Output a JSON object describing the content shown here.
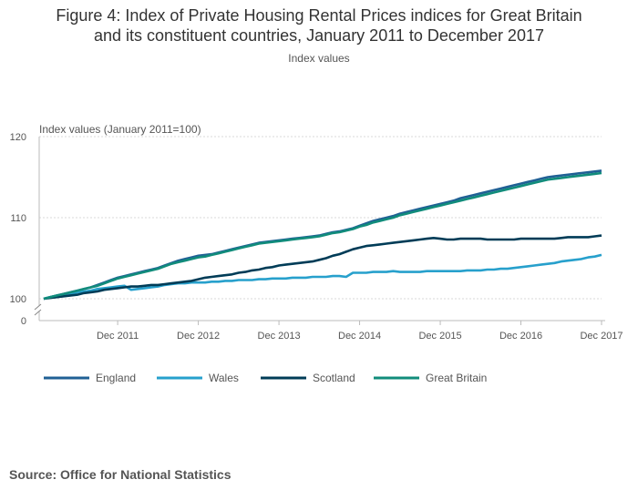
{
  "title_line1": "Figure 4: Index of Private Housing Rental Prices indices for Great Britain",
  "title_line2": "and its constituent countries, January 2011 to December 2017",
  "subtitle": "Index values",
  "source": "Source: Office for National Statistics",
  "chart_data": {
    "type": "line",
    "ylabel": "Index values (January 2011=100)",
    "xlabel": "",
    "ylim": [
      100,
      120
    ],
    "y_ticks": [
      "120",
      "110",
      "100",
      "0"
    ],
    "x_ticks": [
      "Dec 2011",
      "Dec 2012",
      "Dec 2013",
      "Dec 2014",
      "Dec 2015",
      "Dec 2016",
      "Dec 2017"
    ],
    "axis_break": true,
    "grid": true,
    "legend_position": "bottom",
    "x_start": "Jan 2011",
    "x_end": "Dec 2017",
    "series": [
      {
        "name": "England",
        "color": "#206095",
        "values": [
          100.0,
          100.2,
          100.4,
          100.6,
          100.8,
          101.0,
          101.2,
          101.4,
          101.7,
          102.0,
          102.3,
          102.6,
          102.8,
          103.0,
          103.2,
          103.4,
          103.6,
          103.8,
          104.1,
          104.4,
          104.7,
          104.9,
          105.1,
          105.3,
          105.4,
          105.5,
          105.7,
          105.9,
          106.1,
          106.3,
          106.5,
          106.7,
          106.9,
          107.0,
          107.1,
          107.2,
          107.3,
          107.4,
          107.5,
          107.6,
          107.7,
          107.8,
          108.0,
          108.2,
          108.3,
          108.5,
          108.7,
          109.0,
          109.3,
          109.6,
          109.8,
          110.0,
          110.2,
          110.5,
          110.7,
          110.9,
          111.1,
          111.3,
          111.5,
          111.7,
          111.9,
          112.1,
          112.4,
          112.6,
          112.8,
          113.0,
          113.2,
          113.4,
          113.6,
          113.8,
          114.0,
          114.2,
          114.4,
          114.6,
          114.8,
          115.0,
          115.1,
          115.2,
          115.3,
          115.4,
          115.5,
          115.6,
          115.7,
          115.8
        ]
      },
      {
        "name": "Wales",
        "color": "#27a0cc",
        "values": [
          100.0,
          100.2,
          100.4,
          100.5,
          100.6,
          100.8,
          100.9,
          101.0,
          101.2,
          101.3,
          101.4,
          101.5,
          101.6,
          101.1,
          101.2,
          101.3,
          101.4,
          101.5,
          101.7,
          101.8,
          101.9,
          101.9,
          102.0,
          102.0,
          102.0,
          102.1,
          102.1,
          102.2,
          102.2,
          102.3,
          102.3,
          102.3,
          102.4,
          102.4,
          102.5,
          102.5,
          102.5,
          102.6,
          102.6,
          102.6,
          102.7,
          102.7,
          102.7,
          102.8,
          102.8,
          102.7,
          103.2,
          103.2,
          103.2,
          103.3,
          103.3,
          103.3,
          103.4,
          103.3,
          103.3,
          103.3,
          103.3,
          103.4,
          103.4,
          103.4,
          103.4,
          103.4,
          103.4,
          103.5,
          103.5,
          103.5,
          103.6,
          103.6,
          103.7,
          103.7,
          103.8,
          103.9,
          104.0,
          104.1,
          104.2,
          104.3,
          104.4,
          104.6,
          104.7,
          104.8,
          104.9,
          105.1,
          105.2,
          105.4
        ]
      },
      {
        "name": "Scotland",
        "color": "#003c57",
        "values": [
          100.0,
          100.1,
          100.2,
          100.3,
          100.4,
          100.5,
          100.7,
          100.8,
          100.9,
          101.1,
          101.2,
          101.3,
          101.4,
          101.5,
          101.5,
          101.6,
          101.7,
          101.7,
          101.8,
          101.9,
          102.0,
          102.1,
          102.2,
          102.4,
          102.6,
          102.7,
          102.8,
          102.9,
          103.0,
          103.2,
          103.3,
          103.5,
          103.6,
          103.8,
          103.9,
          104.1,
          104.2,
          104.3,
          104.4,
          104.5,
          104.6,
          104.8,
          105.0,
          105.3,
          105.5,
          105.8,
          106.1,
          106.3,
          106.5,
          106.6,
          106.7,
          106.8,
          106.9,
          107.0,
          107.1,
          107.2,
          107.3,
          107.4,
          107.5,
          107.4,
          107.3,
          107.3,
          107.4,
          107.4,
          107.4,
          107.4,
          107.3,
          107.3,
          107.3,
          107.3,
          107.3,
          107.4,
          107.4,
          107.4,
          107.4,
          107.4,
          107.4,
          107.5,
          107.6,
          107.6,
          107.6,
          107.6,
          107.7,
          107.8
        ]
      },
      {
        "name": "Great Britain",
        "color": "#118c7b",
        "values": [
          100.0,
          100.2,
          100.4,
          100.6,
          100.8,
          101.0,
          101.2,
          101.4,
          101.6,
          101.9,
          102.2,
          102.5,
          102.7,
          102.9,
          103.1,
          103.3,
          103.5,
          103.7,
          104.0,
          104.3,
          104.5,
          104.7,
          104.9,
          105.1,
          105.2,
          105.4,
          105.6,
          105.8,
          106.0,
          106.2,
          106.4,
          106.6,
          106.8,
          106.9,
          107.0,
          107.1,
          107.2,
          107.3,
          107.4,
          107.5,
          107.6,
          107.7,
          107.9,
          108.1,
          108.2,
          108.4,
          108.6,
          108.9,
          109.1,
          109.4,
          109.6,
          109.8,
          110.0,
          110.3,
          110.5,
          110.7,
          110.9,
          111.1,
          111.3,
          111.5,
          111.7,
          111.9,
          112.1,
          112.3,
          112.5,
          112.7,
          112.9,
          113.1,
          113.3,
          113.5,
          113.7,
          113.9,
          114.1,
          114.3,
          114.5,
          114.7,
          114.8,
          114.9,
          115.0,
          115.1,
          115.2,
          115.3,
          115.4,
          115.5
        ]
      }
    ]
  }
}
